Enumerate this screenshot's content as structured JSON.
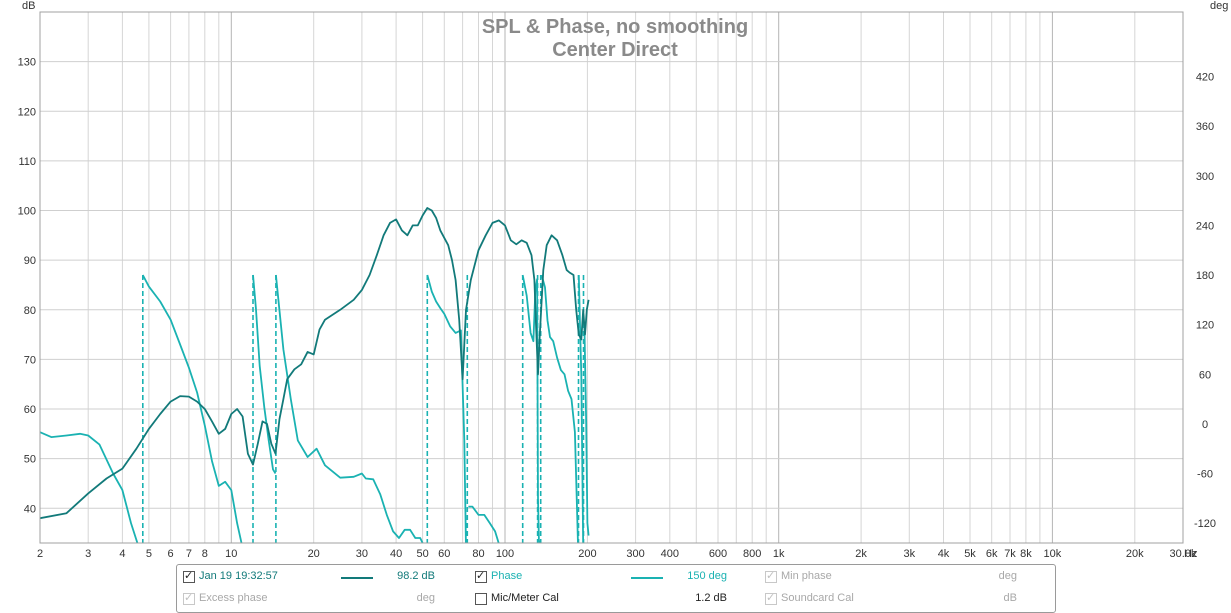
{
  "chart_data": {
    "type": "line",
    "title": "SPL & Phase, no smoothing",
    "subtitle": "Center Direct",
    "left_unit": "dB",
    "right_unit": "deg",
    "x_unit": "Hz",
    "x_scale": "log",
    "xlim": [
      2,
      30000
    ],
    "ylim_left": [
      33,
      140
    ],
    "ylim_right": [
      -144,
      498
    ],
    "grid": true,
    "y_ticks_left": [
      40,
      50,
      60,
      70,
      80,
      90,
      100,
      110,
      120,
      130
    ],
    "y_ticks_right": [
      -120,
      -60,
      0,
      60,
      120,
      180,
      240,
      300,
      360,
      420
    ],
    "x_ticks": [
      {
        "v": 2,
        "label": "2"
      },
      {
        "v": 3,
        "label": "3"
      },
      {
        "v": 4,
        "label": "4"
      },
      {
        "v": 5,
        "label": "5"
      },
      {
        "v": 6,
        "label": "6"
      },
      {
        "v": 7,
        "label": "7"
      },
      {
        "v": 8,
        "label": "8"
      },
      {
        "v": 10,
        "label": "10"
      },
      {
        "v": 20,
        "label": "20"
      },
      {
        "v": 30,
        "label": "30"
      },
      {
        "v": 40,
        "label": "40"
      },
      {
        "v": 50,
        "label": "50"
      },
      {
        "v": 60,
        "label": "60"
      },
      {
        "v": 80,
        "label": "80"
      },
      {
        "v": 100,
        "label": "100"
      },
      {
        "v": 200,
        "label": "200"
      },
      {
        "v": 300,
        "label": "300"
      },
      {
        "v": 400,
        "label": "400"
      },
      {
        "v": 600,
        "label": "600"
      },
      {
        "v": 800,
        "label": "800"
      },
      {
        "v": 1000,
        "label": "1k"
      },
      {
        "v": 2000,
        "label": "2k"
      },
      {
        "v": 3000,
        "label": "3k"
      },
      {
        "v": 4000,
        "label": "4k"
      },
      {
        "v": 5000,
        "label": "5k"
      },
      {
        "v": 6000,
        "label": "6k"
      },
      {
        "v": 7000,
        "label": "7k"
      },
      {
        "v": 8000,
        "label": "8k"
      },
      {
        "v": 10000,
        "label": "10k"
      },
      {
        "v": 20000,
        "label": "20k"
      },
      {
        "v": 30000,
        "label": "30.0k"
      }
    ],
    "series": [
      {
        "name": "Jan 19 19:32:57",
        "axis": "left",
        "color": "#127a7a",
        "points": [
          [
            2,
            38
          ],
          [
            2.5,
            39
          ],
          [
            3,
            43
          ],
          [
            3.5,
            46
          ],
          [
            4,
            48
          ],
          [
            4.5,
            52
          ],
          [
            5,
            56
          ],
          [
            5.5,
            59
          ],
          [
            6,
            61.5
          ],
          [
            6.5,
            62.6
          ],
          [
            7,
            62.5
          ],
          [
            7.5,
            61.5
          ],
          [
            8,
            60
          ],
          [
            8.5,
            57.5
          ],
          [
            9,
            55
          ],
          [
            9.5,
            56
          ],
          [
            10,
            59
          ],
          [
            10.5,
            60
          ],
          [
            11,
            58.5
          ],
          [
            11.5,
            51
          ],
          [
            12,
            48.8
          ],
          [
            12.5,
            53
          ],
          [
            13,
            57.5
          ],
          [
            13.5,
            57
          ],
          [
            14,
            53
          ],
          [
            14.5,
            51
          ],
          [
            15,
            58
          ],
          [
            15.5,
            62
          ],
          [
            16,
            66
          ],
          [
            17,
            68
          ],
          [
            18,
            69
          ],
          [
            19,
            71.5
          ],
          [
            20,
            71
          ],
          [
            21,
            76
          ],
          [
            22,
            78
          ],
          [
            25,
            80
          ],
          [
            28,
            82
          ],
          [
            30,
            84
          ],
          [
            32,
            87
          ],
          [
            34,
            91
          ],
          [
            36,
            95
          ],
          [
            38,
            97.5
          ],
          [
            40,
            98.2
          ],
          [
            42,
            96
          ],
          [
            44,
            95
          ],
          [
            46,
            97
          ],
          [
            48,
            97
          ],
          [
            50,
            99
          ],
          [
            52,
            100.5
          ],
          [
            54,
            100
          ],
          [
            56,
            98.5
          ],
          [
            58,
            96
          ],
          [
            62,
            93
          ],
          [
            64,
            90
          ],
          [
            66,
            86
          ],
          [
            68,
            78
          ],
          [
            70,
            66
          ],
          [
            72,
            80
          ],
          [
            75,
            86
          ],
          [
            80,
            92
          ],
          [
            85,
            95
          ],
          [
            90,
            97.5
          ],
          [
            95,
            98
          ],
          [
            100,
            97
          ],
          [
            105,
            94
          ],
          [
            110,
            93.2
          ],
          [
            115,
            94
          ],
          [
            120,
            93.5
          ],
          [
            125,
            91
          ],
          [
            128,
            86
          ],
          [
            130,
            76
          ],
          [
            132,
            67
          ],
          [
            134,
            75
          ],
          [
            138,
            88
          ],
          [
            142,
            93
          ],
          [
            148,
            95
          ],
          [
            155,
            94
          ],
          [
            162,
            91
          ],
          [
            168,
            88
          ],
          [
            172,
            87.5
          ],
          [
            178,
            87
          ],
          [
            182,
            80
          ],
          [
            186,
            75
          ],
          [
            190,
            74
          ],
          [
            193,
            80
          ],
          [
            196,
            75
          ],
          [
            199,
            80
          ],
          [
            202,
            82
          ]
        ]
      },
      {
        "name": "Phase",
        "axis": "right",
        "color": "#1ab2b2",
        "segments": [
          [
            [
              2,
              -10
            ],
            [
              2.2,
              -16
            ],
            [
              2.5,
              -14
            ],
            [
              2.8,
              -12
            ],
            [
              3,
              -14
            ],
            [
              3.3,
              -25
            ],
            [
              3.7,
              -60
            ],
            [
              4,
              -80
            ],
            [
              4.3,
              -120
            ],
            [
              4.6,
              -150
            ]
          ],
          [
            [
              4.75,
              180
            ],
            [
              5,
              166
            ],
            [
              5.5,
              148
            ],
            [
              6,
              126
            ],
            [
              6.5,
              96
            ],
            [
              7,
              68
            ],
            [
              7.5,
              38
            ],
            [
              8,
              -2
            ],
            [
              8.5,
              -45
            ],
            [
              9,
              -75
            ],
            [
              9.5,
              -70
            ],
            [
              10,
              -80
            ],
            [
              10.5,
              -120
            ],
            [
              11,
              -150
            ]
          ],
          [
            [
              12,
              180
            ],
            [
              12.3,
              140
            ],
            [
              12.7,
              70
            ],
            [
              13.2,
              20
            ],
            [
              13.7,
              -20
            ],
            [
              14.2,
              -55
            ],
            [
              14.5,
              -60
            ]
          ],
          [
            [
              14.55,
              180
            ],
            [
              15.5,
              90
            ],
            [
              16.5,
              30
            ],
            [
              17.5,
              -20
            ],
            [
              19,
              -40
            ],
            [
              20.5,
              -30
            ],
            [
              22,
              -50
            ],
            [
              25,
              -65
            ],
            [
              28,
              -64
            ],
            [
              30,
              -60
            ],
            [
              31,
              -66
            ],
            [
              33,
              -67
            ],
            [
              35,
              -85
            ],
            [
              37,
              -110
            ],
            [
              39,
              -130
            ],
            [
              41,
              -138
            ],
            [
              43,
              -128
            ],
            [
              45,
              -128
            ],
            [
              47,
              -138
            ],
            [
              49,
              -138
            ],
            [
              51,
              -150
            ]
          ],
          [
            [
              52,
              180
            ],
            [
              54,
              160
            ],
            [
              56,
              148
            ],
            [
              58,
              140
            ],
            [
              60,
              133
            ],
            [
              63,
              118
            ],
            [
              66,
              110
            ],
            [
              69,
              113
            ],
            [
              71,
              -20
            ],
            [
              72,
              -150
            ]
          ],
          [
            [
              73.5,
              -100
            ],
            [
              76,
              -100
            ],
            [
              80,
              -110
            ],
            [
              84,
              -110
            ],
            [
              88,
              -120
            ],
            [
              92,
              -130
            ],
            [
              96,
              -150
            ]
          ],
          [
            [
              103,
              -165
            ],
            [
              108,
              -150
            ]
          ],
          [
            [
              116,
              180
            ],
            [
              120,
              155
            ],
            [
              124,
              110
            ],
            [
              127,
              100
            ],
            [
              129,
              160
            ],
            [
              131,
              175
            ],
            [
              132,
              -90
            ],
            [
              133,
              -140
            ],
            [
              134,
              -150
            ]
          ],
          [
            [
              136,
              180
            ],
            [
              140,
              165
            ],
            [
              143,
              125
            ],
            [
              146,
              105
            ],
            [
              150,
              100
            ],
            [
              155,
              80
            ],
            [
              160,
              65
            ],
            [
              165,
              60
            ],
            [
              170,
              40
            ],
            [
              175,
              30
            ],
            [
              180,
              -10
            ],
            [
              185,
              -150
            ]
          ],
          [
            [
              186,
              180
            ],
            [
              188,
              120
            ],
            [
              190,
              60
            ],
            [
              193,
              -150
            ]
          ],
          [
            [
              195,
              120
            ],
            [
              198,
              0
            ],
            [
              200,
              -120
            ],
            [
              202,
              -135
            ]
          ]
        ]
      }
    ],
    "phase_wraps": [
      4.75,
      12,
      14.55,
      52,
      72.8,
      116,
      131.5,
      135,
      185.5,
      193.5
    ]
  },
  "legend": {
    "row1": [
      {
        "label": "Jan 19 19:32:57",
        "checked": true,
        "enabled": true,
        "value": "98.2 dB",
        "color": "#127a7a"
      },
      {
        "label": "Phase",
        "checked": true,
        "enabled": true,
        "value": "150 deg",
        "color": "#1ab2b2"
      },
      {
        "label": "Min phase",
        "checked": true,
        "enabled": false,
        "value": "deg"
      }
    ],
    "row2": [
      {
        "label": "Excess phase",
        "checked": true,
        "enabled": false,
        "value": "deg"
      },
      {
        "label": "Mic/Meter Cal",
        "checked": false,
        "enabled": true,
        "value": "1.2 dB"
      },
      {
        "label": "Soundcard Cal",
        "checked": true,
        "enabled": false,
        "value": "dB"
      }
    ]
  }
}
